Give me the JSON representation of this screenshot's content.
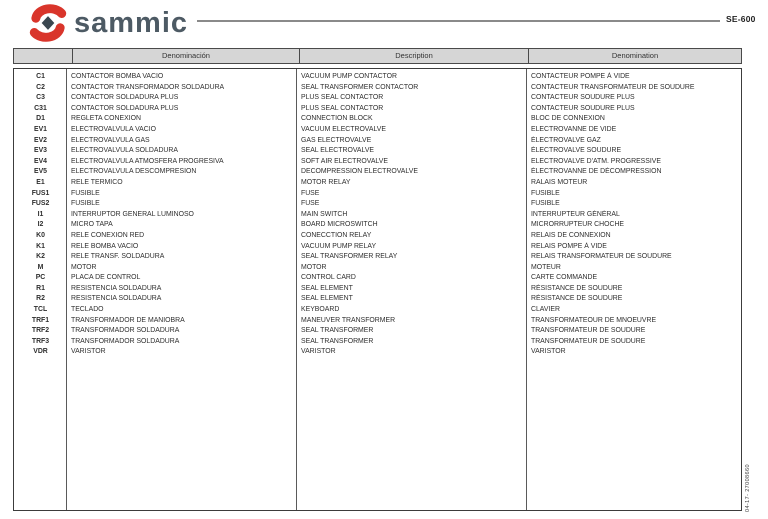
{
  "page": {
    "brand": "sammic",
    "model": "SE-600",
    "doc_code": "04-17- 27008660"
  },
  "colors": {
    "brand_red": "#d9352b",
    "brand_slate": "#4d5a64",
    "logo_diamond": "#3a4750",
    "header_bg": "#d6d6d6",
    "border": "#4a4a4a",
    "text": "#2f2f2f"
  },
  "icons": {
    "logo": "sammic-s-swoosh-with-diamond"
  },
  "table": {
    "headers": [
      "",
      "Denominación",
      "Description",
      "Denomination"
    ],
    "rows": [
      {
        "code": "C1",
        "es": "CONTACTOR BOMBA VACIO",
        "en": "VACUUM PUMP CONTACTOR",
        "fr": "CONTACTEUR POMPE À VIDE"
      },
      {
        "code": "C2",
        "es": "CONTACTOR TRANSFORMADOR SOLDADURA",
        "en": "SEAL TRANSFORMER CONTACTOR",
        "fr": "CONTACTEUR TRANSFORMATEUR DE SOUDURE"
      },
      {
        "code": "C3",
        "es": "CONTACTOR SOLDADURA PLUS",
        "en": "PLUS SEAL CONTACTOR",
        "fr": "CONTACTEUR SOUDURE PLUS"
      },
      {
        "code": "C31",
        "es": "CONTACTOR SOLDADURA PLUS",
        "en": "PLUS SEAL CONTACTOR",
        "fr": "CONTACTEUR SOUDURE PLUS"
      },
      {
        "code": "D1",
        "es": "REGLETA CONEXION",
        "en": "CONNECTION BLOCK",
        "fr": "BLOC DE CONNEXION"
      },
      {
        "code": "EV1",
        "es": "ELECTROVALVULA VACIO",
        "en": "VACUUM ELECTROVALVE",
        "fr": "ELECTROVANNE DE VIDE"
      },
      {
        "code": "EV2",
        "es": "ELECTROVALVULA GAS",
        "en": "GAS ELECTROVALVE",
        "fr": "ÉLECTROVALVE GAZ"
      },
      {
        "code": "EV3",
        "es": "ELECTROVALVULA SOLDADURA",
        "en": "SEAL ELECTROVALVE",
        "fr": "ÉLECTROVALVE SOUDURE"
      },
      {
        "code": "EV4",
        "es": "ELECTROVALVULA ATMOSFERA PROGRESIVA",
        "en": "SOFT AIR ELECTROVALVE",
        "fr": "ELECTROVALVE D'ATM. PROGRESSIVE"
      },
      {
        "code": "EV5",
        "es": "ELECTROVALVULA DESCOMPRESION",
        "en": "DECOMPRESSION ELECTROVALVE",
        "fr": "ÉLECTROVANNE DE DÉCOMPRESSION"
      },
      {
        "code": "E1",
        "es": "RELE TERMICO",
        "en": "MOTOR RELAY",
        "fr": "RALAIS MOTEUR"
      },
      {
        "code": "FUS1",
        "es": "FUSIBLE",
        "en": "FUSE",
        "fr": "FUSIBLE"
      },
      {
        "code": "FUS2",
        "es": "FUSIBLE",
        "en": "FUSE",
        "fr": "FUSIBLE"
      },
      {
        "code": "I1",
        "es": "INTERRUPTOR GENERAL LUMINOSO",
        "en": "MAIN SWITCH",
        "fr": "INTERRUPTEUR GÉNÉRAL"
      },
      {
        "code": "I2",
        "es": "MICRO TAPA",
        "en": "BOARD MICROSWITCH",
        "fr": "MICRORRUPTEUR CHOCHE"
      },
      {
        "code": "K0",
        "es": "RELE CONEXION RED",
        "en": "CONECCTION RELAY",
        "fr": "RELAIS DE CONNEXION"
      },
      {
        "code": "K1",
        "es": "RELE BOMBA VACIO",
        "en": "VACUUM PUMP RELAY",
        "fr": "RELAIS POMPE À VIDE"
      },
      {
        "code": "K2",
        "es": "RELE TRANSF. SOLDADURA",
        "en": "SEAL TRANSFORMER RELAY",
        "fr": "RELAIS TRANSFORMATEUR DE SOUDURE"
      },
      {
        "code": "M",
        "es": "MOTOR",
        "en": "MOTOR",
        "fr": "MOTEUR"
      },
      {
        "code": "PC",
        "es": "PLACA DE CONTROL",
        "en": "CONTROL CARD",
        "fr": "CARTE COMMANDE"
      },
      {
        "code": "R1",
        "es": "RESISTENCIA SOLDADURA",
        "en": "SEAL ELEMENT",
        "fr": "RÉSISTANCE DE SOUDURE"
      },
      {
        "code": "R2",
        "es": "RESISTENCIA SOLDADURA",
        "en": "SEAL ELEMENT",
        "fr": "RÉSISTANCE DE SOUDURE"
      },
      {
        "code": "TCL",
        "es": "TECLADO",
        "en": "KEYBOARD",
        "fr": "CLAVIER"
      },
      {
        "code": "TRF1",
        "es": "TRANSFORMADOR DE MANIOBRA",
        "en": "MANEUVER TRANSFORMER",
        "fr": "TRANSFORMATEOUR DE MNOEUVRE"
      },
      {
        "code": "TRF2",
        "es": "TRANSFORMADOR SOLDADURA",
        "en": "SEAL TRANSFORMER",
        "fr": "TRANSFORMATEUR DE SOUDURE"
      },
      {
        "code": "TRF3",
        "es": "TRANSFORMADOR SOLDADURA",
        "en": "SEAL TRANSFORMER",
        "fr": "TRANSFORMATEUR DE SOUDURE"
      },
      {
        "code": "VDR",
        "es": "VARISTOR",
        "en": "VARISTOR",
        "fr": "VARISTOR"
      }
    ]
  }
}
